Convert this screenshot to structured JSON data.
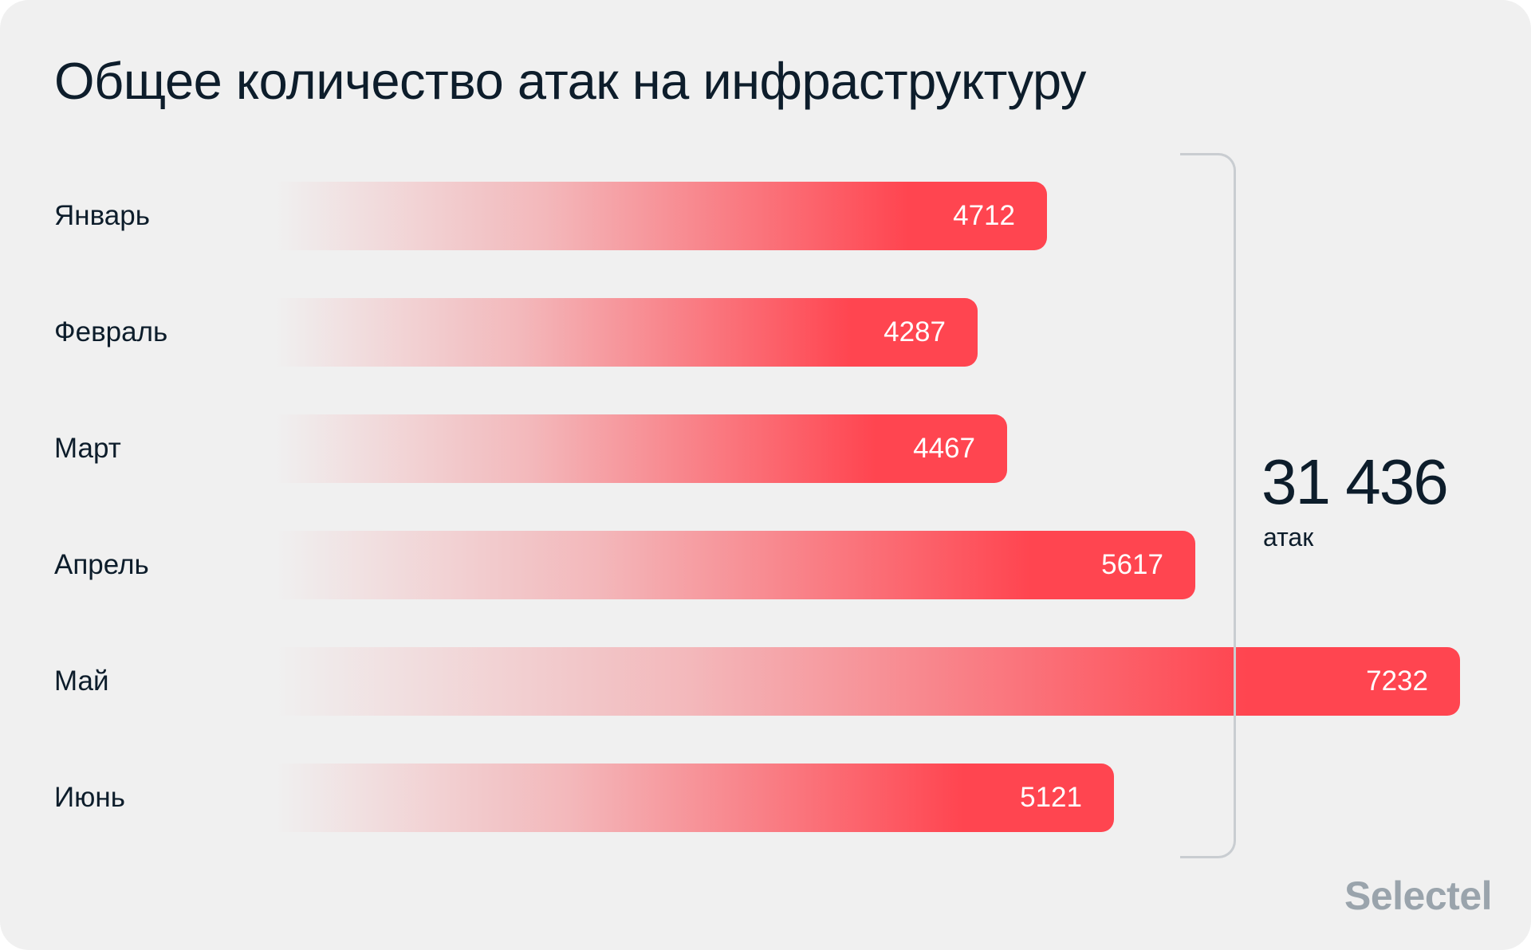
{
  "chart_data": {
    "type": "bar",
    "orientation": "horizontal",
    "title": "Общее количество атак на инфраструктуру",
    "categories": [
      "Январь",
      "Февраль",
      "Март",
      "Апрель",
      "Май",
      "Июнь"
    ],
    "values": [
      4712,
      4287,
      4467,
      5617,
      7232,
      5121
    ],
    "value_labels": [
      "4712",
      "4287",
      "4467",
      "5617",
      "7232",
      "5121"
    ],
    "total": {
      "value": "31 436",
      "unit": "атак"
    },
    "grid": false,
    "colors": {
      "bar_end": "#ff4550",
      "bar_start": "#f0f0f0",
      "text": "#0d1d2b",
      "background": "#f0f0f0"
    }
  },
  "brand": {
    "logo_text": "Selectel",
    "logo_color": "#9aa4ac"
  }
}
